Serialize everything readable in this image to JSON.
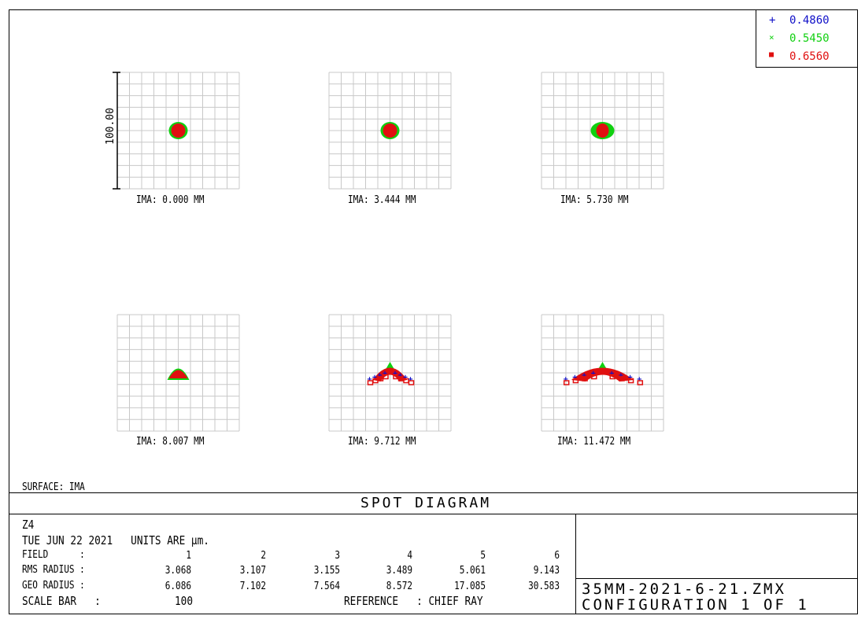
{
  "legend": [
    {
      "label": "0.4860",
      "color": "#1010c8",
      "marker": "plus"
    },
    {
      "label": "0.5450",
      "color": "#10d010",
      "marker": "x"
    },
    {
      "label": "0.6560",
      "color": "#e01010",
      "marker": "square"
    }
  ],
  "chart_data": {
    "type": "scatter",
    "title": "SPOT DIAGRAM",
    "scale_bar_label": "100.00",
    "grid": true,
    "plots": [
      {
        "field": 1,
        "label": "IMA: 0.000 MM",
        "shape": "round"
      },
      {
        "field": 2,
        "label": "IMA: 3.444 MM",
        "shape": "round"
      },
      {
        "field": 3,
        "label": "IMA: 5.730 MM",
        "shape": "oval"
      },
      {
        "field": 4,
        "label": "IMA: 8.007 MM",
        "shape": "triangle"
      },
      {
        "field": 5,
        "label": "IMA: 9.712 MM",
        "shape": "arc"
      },
      {
        "field": 6,
        "label": "IMA: 11.472 MM",
        "shape": "wide-arc"
      }
    ]
  },
  "surface": "SURFACE: IMA",
  "info": {
    "lens": "Z4",
    "date_units": "TUE JUN 22 2021   UNITS ARE µm.",
    "field_label": "FIELD      :",
    "rms_label": "RMS RADIUS :",
    "geo_label": "GEO RADIUS :",
    "scale_label": "SCALE BAR   :",
    "fields": [
      "1",
      "2",
      "3",
      "4",
      "5",
      "6"
    ],
    "rms": [
      "3.068",
      "3.107",
      "3.155",
      "3.489",
      "5.061",
      "9.143"
    ],
    "geo": [
      "6.086",
      "7.102",
      "7.564",
      "8.572",
      "17.085",
      "30.583"
    ],
    "scale_value": "100",
    "reference": "REFERENCE   : CHIEF RAY"
  },
  "file": "35MM-2021-6-21.ZMX",
  "configuration": "CONFIGURATION 1 OF 1"
}
